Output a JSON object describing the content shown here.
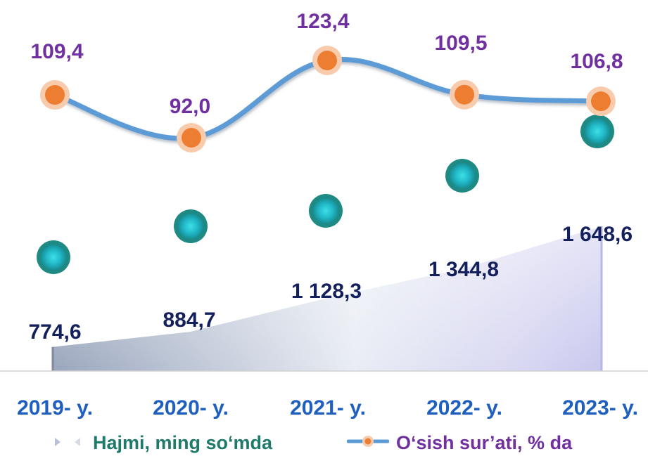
{
  "chart_data": {
    "type": "area+line",
    "categories": [
      "2019- y.",
      "2020- y.",
      "2021- y.",
      "2022- y.",
      "2023- y."
    ],
    "series": [
      {
        "name": "Hajmi, ming so‘mda",
        "type": "area",
        "values": [
          774.6,
          884.7,
          1128.3,
          1344.8,
          1648.6
        ],
        "labels": [
          "774,6",
          "884,7",
          "1 128,3",
          "1 344,8",
          "1 648,6"
        ]
      },
      {
        "name": "O‘sish sur’ati, % da",
        "type": "line",
        "values": [
          109.4,
          92.0,
          123.4,
          109.5,
          106.8
        ],
        "labels": [
          "109,4",
          "92,0",
          "123,4",
          "109,5",
          "106,8"
        ]
      }
    ],
    "legend_position": "bottom",
    "grid": false,
    "colors": {
      "category_label": "#1f5fbf",
      "volume_label": "#14205c",
      "growth_label": "#7030a0",
      "line": "#5b9bd5",
      "marker_fill": "#ed7d31",
      "marker_ring": "#f8cbad",
      "teal_dot": "#1f8a83",
      "teal_dot_center": "#3ce0e8",
      "legend_volume_text": "#1f7a6c"
    }
  }
}
